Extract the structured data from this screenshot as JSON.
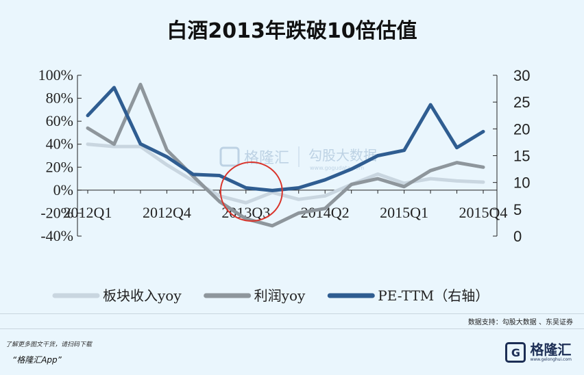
{
  "title": "白酒2013年跌破10倍估值",
  "chart_data": {
    "type": "line",
    "title": "白酒2013年跌破10倍估值",
    "categories": [
      "2012Q1",
      "2012Q2",
      "2012Q3",
      "2012Q4",
      "2013Q1",
      "2013Q2",
      "2013Q3",
      "2013Q4",
      "2014Q1",
      "2014Q2",
      "2014Q3",
      "2014Q4",
      "2015Q1",
      "2015Q2",
      "2015Q3",
      "2015Q4"
    ],
    "x_tick_labels": [
      "2012Q1",
      "2012Q4",
      "2013Q3",
      "2014Q2",
      "2015Q1",
      "2015Q4"
    ],
    "y_left": {
      "ticks": [
        "100%",
        "80%",
        "60%",
        "40%",
        "20%",
        "0%",
        "-20%",
        "-40%"
      ],
      "ylim": [
        -40,
        100
      ],
      "unit": "%"
    },
    "y_right": {
      "ticks": [
        "30",
        "25",
        "20",
        "15",
        "10",
        "5",
        "0"
      ],
      "ylim": [
        0,
        30
      ]
    },
    "series": [
      {
        "name": "板块收入yoy",
        "axis": "left",
        "color": "#c9d6e0",
        "values": [
          40,
          38,
          38,
          22,
          8,
          -5,
          -11,
          -2,
          -8,
          -5,
          5,
          14,
          6,
          10,
          8,
          7
        ]
      },
      {
        "name": "利润yoy",
        "axis": "left",
        "color": "#8e969c",
        "values": [
          54,
          40,
          92,
          35,
          12,
          -10,
          -25,
          -31,
          -20,
          -16,
          5,
          10,
          3,
          17,
          24,
          20
        ]
      },
      {
        "name": "PE-TTM（右轴）",
        "axis": "right",
        "color": "#2f5d91",
        "values": [
          22.5,
          27.7,
          17.2,
          14.8,
          11.5,
          11.3,
          9,
          8.5,
          9,
          10.5,
          12.5,
          15,
          16,
          24.5,
          16.5,
          19.5
        ]
      }
    ],
    "grid": false,
    "legend_position": "bottom",
    "highlight": "2013Q3"
  },
  "watermark": {
    "brand": "格隆汇",
    "brand2": "勾股大数据",
    "url": "www.gogudata.com"
  },
  "source_text": "数据支持：勾股大数据 、东吴证券",
  "footer": {
    "note": "了解更多图文干货，请扫码下载",
    "app": "“格隆汇App”",
    "brand_mark": "G",
    "brand_name": "格隆汇",
    "brand_url": "www.gelonghui.com"
  }
}
